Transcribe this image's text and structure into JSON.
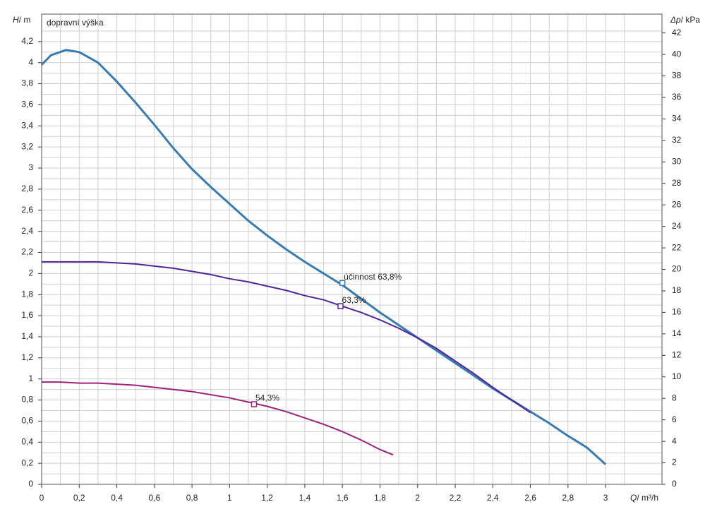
{
  "chart_data": {
    "type": "line",
    "title": "dopravní výška",
    "ylabel_symbol": "H",
    "ylabel_unit": "/ m",
    "y2label_symbol": "Δp",
    "y2label_unit": "/ kPa",
    "xlabel_symbol": "Q",
    "xlabel_unit": "/ m³/h",
    "xlim": [
      0,
      3.3
    ],
    "ylim": [
      0,
      4.46
    ],
    "y2lim": [
      0,
      43.75
    ],
    "grid": true,
    "xticks": [
      0,
      {
        "value": 0.2,
        "label": "0,2"
      },
      {
        "value": 0.4,
        "label": "0,4"
      },
      {
        "value": 0.6,
        "label": "0,6"
      },
      {
        "value": 0.8,
        "label": "0,8"
      },
      1,
      {
        "value": 1.2,
        "label": "1,2"
      },
      {
        "value": 1.4,
        "label": "1,4"
      },
      {
        "value": 1.6,
        "label": "1,6"
      },
      {
        "value": 1.8,
        "label": "1,8"
      },
      2,
      {
        "value": 2.2,
        "label": "2,2"
      },
      {
        "value": 2.4,
        "label": "2,4"
      },
      {
        "value": 2.6,
        "label": "2,6"
      },
      {
        "value": 2.8,
        "label": "2,8"
      },
      3
    ],
    "yticks": [
      0,
      {
        "value": 0.2,
        "label": "0,2"
      },
      {
        "value": 0.4,
        "label": "0,4"
      },
      {
        "value": 0.6,
        "label": "0,6"
      },
      {
        "value": 0.8,
        "label": "0,8"
      },
      1,
      {
        "value": 1.2,
        "label": "1,2"
      },
      {
        "value": 1.4,
        "label": "1,4"
      },
      {
        "value": 1.6,
        "label": "1,6"
      },
      {
        "value": 1.8,
        "label": "1,8"
      },
      2,
      {
        "value": 2.2,
        "label": "2,2"
      },
      {
        "value": 2.4,
        "label": "2,4"
      },
      {
        "value": 2.6,
        "label": "2,6"
      },
      {
        "value": 2.8,
        "label": "2,8"
      },
      3,
      {
        "value": 3.2,
        "label": "3,2"
      },
      {
        "value": 3.4,
        "label": "3,4"
      },
      {
        "value": 3.6,
        "label": "3,6"
      },
      {
        "value": 3.8,
        "label": "3,8"
      },
      4,
      {
        "value": 4.2,
        "label": "4,2"
      }
    ],
    "y2ticks": [
      0,
      2,
      4,
      6,
      8,
      10,
      12,
      14,
      16,
      18,
      20,
      22,
      24,
      26,
      28,
      30,
      32,
      34,
      36,
      38,
      40,
      42
    ],
    "xminor": [
      0.1,
      0.3,
      0.5,
      0.7,
      0.9,
      1.1,
      1.3,
      1.5,
      1.7,
      1.9,
      2.1,
      2.3,
      2.5,
      2.7,
      2.9,
      3.1
    ],
    "yminor": [
      0.1,
      0.3,
      0.5,
      0.7,
      0.9,
      1.1,
      1.3,
      1.5,
      1.7,
      1.9,
      2.1,
      2.3,
      2.5,
      2.7,
      2.9,
      3.1,
      3.3,
      3.5,
      3.7,
      3.9,
      4.1,
      4.3
    ],
    "series": [
      {
        "color": "#3a7bb0",
        "x": [
          0,
          0.05,
          0.13,
          0.2,
          0.3,
          0.4,
          0.5,
          0.6,
          0.7,
          0.8,
          0.9,
          1.0,
          1.1,
          1.2,
          1.3,
          1.4,
          1.5,
          1.6,
          1.7,
          1.8,
          1.9,
          2.0,
          2.1,
          2.2,
          2.3,
          2.4,
          2.5,
          2.6,
          2.7,
          2.8,
          2.9,
          3.0
        ],
        "values": [
          3.98,
          4.07,
          4.12,
          4.1,
          4.0,
          3.82,
          3.62,
          3.41,
          3.19,
          2.99,
          2.82,
          2.66,
          2.5,
          2.36,
          2.23,
          2.11,
          2.0,
          1.89,
          1.76,
          1.63,
          1.51,
          1.39,
          1.27,
          1.15,
          1.03,
          0.91,
          0.8,
          0.69,
          0.58,
          0.46,
          0.35,
          0.19
        ],
        "marker": {
          "x": 1.6,
          "y": 1.91,
          "label": "účinnost 63,8%"
        }
      },
      {
        "color": "#52259a",
        "x": [
          0,
          0.1,
          0.2,
          0.3,
          0.4,
          0.5,
          0.6,
          0.7,
          0.8,
          0.9,
          1.0,
          1.1,
          1.2,
          1.3,
          1.4,
          1.5,
          1.6,
          1.7,
          1.8,
          1.9,
          2.0,
          2.1,
          2.2,
          2.3,
          2.4,
          2.5,
          2.6
        ],
        "values": [
          2.11,
          2.11,
          2.11,
          2.11,
          2.1,
          2.09,
          2.07,
          2.05,
          2.02,
          1.99,
          1.95,
          1.92,
          1.88,
          1.84,
          1.79,
          1.75,
          1.69,
          1.63,
          1.56,
          1.48,
          1.39,
          1.29,
          1.17,
          1.05,
          0.92,
          0.8,
          0.68
        ],
        "marker": {
          "x": 1.59,
          "y": 1.69,
          "label": "63,3%"
        }
      },
      {
        "color": "#a0207a",
        "x": [
          0,
          0.1,
          0.2,
          0.3,
          0.4,
          0.5,
          0.6,
          0.7,
          0.8,
          0.9,
          1.0,
          1.1,
          1.2,
          1.3,
          1.4,
          1.5,
          1.6,
          1.7,
          1.8,
          1.87
        ],
        "values": [
          0.97,
          0.97,
          0.96,
          0.96,
          0.95,
          0.94,
          0.92,
          0.9,
          0.88,
          0.85,
          0.82,
          0.78,
          0.74,
          0.69,
          0.63,
          0.57,
          0.5,
          0.42,
          0.33,
          0.28
        ],
        "marker": {
          "x": 1.13,
          "y": 0.76,
          "label": "54,3%"
        }
      }
    ]
  }
}
